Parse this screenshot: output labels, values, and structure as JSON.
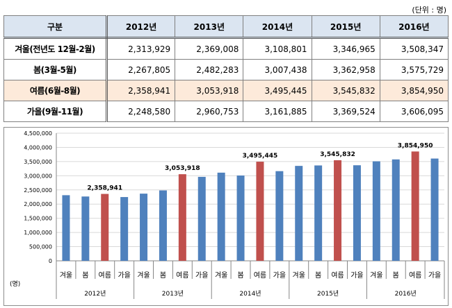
{
  "unit_note": "(단위 : 명)",
  "table": {
    "corner": "구분",
    "years": [
      "2012년",
      "2013년",
      "2014년",
      "2015년",
      "2016년"
    ],
    "rows": [
      {
        "label": "겨울(전년도 12월-2월)",
        "values": [
          "2,313,929",
          "2,369,008",
          "3,108,801",
          "3,346,965",
          "3,508,347"
        ],
        "highlight": false
      },
      {
        "label": "봄(3월-5월)",
        "values": [
          "2,267,805",
          "2,482,283",
          "3,007,438",
          "3,362,958",
          "3,575,729"
        ],
        "highlight": false
      },
      {
        "label": "여름(6월-8월)",
        "values": [
          "2,358,941",
          "3,053,918",
          "3,495,445",
          "3,545,832",
          "3,854,950"
        ],
        "highlight": true
      },
      {
        "label": "가을(9월-11월)",
        "values": [
          "2,248,580",
          "2,960,753",
          "3,161,885",
          "3,369,524",
          "3,606,095"
        ],
        "highlight": false
      }
    ]
  },
  "chart_data": {
    "type": "bar",
    "ylabel": "(명)",
    "ylim": [
      0,
      4500000
    ],
    "yticks": [
      0,
      500000,
      1000000,
      1500000,
      2000000,
      2500000,
      3000000,
      3500000,
      4000000,
      4500000
    ],
    "ytick_labels": [
      "0",
      "500,000",
      "1,000,000",
      "1,500,000",
      "2,000,000",
      "2,500,000",
      "3,000,000",
      "3,500,000",
      "4,000,000",
      "4,500,000"
    ],
    "grid": true,
    "season_labels": [
      "겨울",
      "봄",
      "여름",
      "가을"
    ],
    "groups": [
      {
        "year": "2012년",
        "values": [
          2313929,
          2267805,
          2358941,
          2248580
        ],
        "summer_label": "2,358,941"
      },
      {
        "year": "2013년",
        "values": [
          2369008,
          2482283,
          3053918,
          2960753
        ],
        "summer_label": "3,053,918"
      },
      {
        "year": "2014년",
        "values": [
          3108801,
          3007438,
          3495445,
          3161885
        ],
        "summer_label": "3,495,445"
      },
      {
        "year": "2015년",
        "values": [
          3346965,
          3362958,
          3545832,
          3369524
        ],
        "summer_label": "3,545,832"
      },
      {
        "year": "2016년",
        "values": [
          3508347,
          3575729,
          3854950,
          3606095
        ],
        "summer_label": "3,854,950"
      }
    ],
    "colors": {
      "normal": "#4f81bd",
      "summer": "#c0504d",
      "grid": "#d9d9d9"
    }
  }
}
